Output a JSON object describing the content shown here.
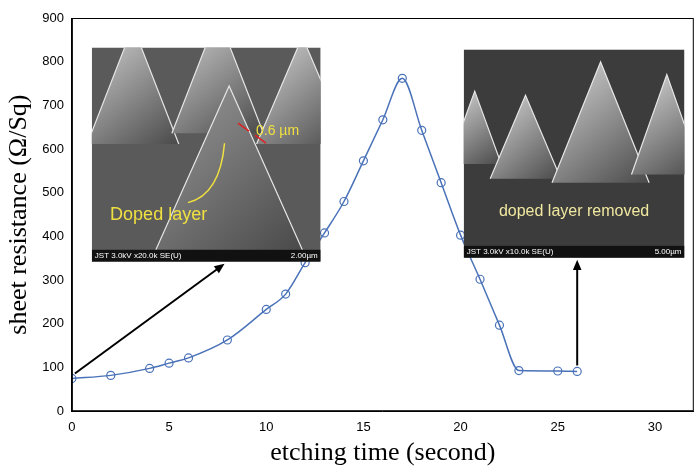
{
  "chart_data": {
    "type": "line",
    "x_label": "etching time (second)",
    "y_label": "sheet resistance (Ω/Sq)",
    "x": [
      0,
      2,
      4,
      5,
      6,
      8,
      10,
      11,
      12,
      13,
      14,
      15,
      16,
      17,
      18,
      19,
      20,
      21,
      22,
      23,
      25,
      26
    ],
    "values": [
      75,
      82,
      98,
      110,
      122,
      163,
      233,
      268,
      340,
      408,
      480,
      573,
      667,
      762,
      643,
      523,
      403,
      302,
      197,
      93,
      92,
      91
    ],
    "color": "#4a72b8",
    "marker": "circle",
    "line_style": "solid",
    "xlim": [
      0,
      32
    ],
    "xticks": [
      0,
      5,
      10,
      15,
      20,
      25,
      30
    ],
    "ylim": [
      0,
      900
    ],
    "yticks": [
      0,
      100,
      200,
      300,
      400,
      500,
      600,
      700,
      800,
      900
    ],
    "grid": false,
    "annotations": [
      [
        "0.6 µm",
        "Doped layer",
        "JST 3.0kV x20.0k SE(U)",
        "2.00µm"
      ],
      [
        "doped layer removed",
        "JST 3.0kV x10.0k SE(U)",
        "5.00µm"
      ]
    ]
  }
}
